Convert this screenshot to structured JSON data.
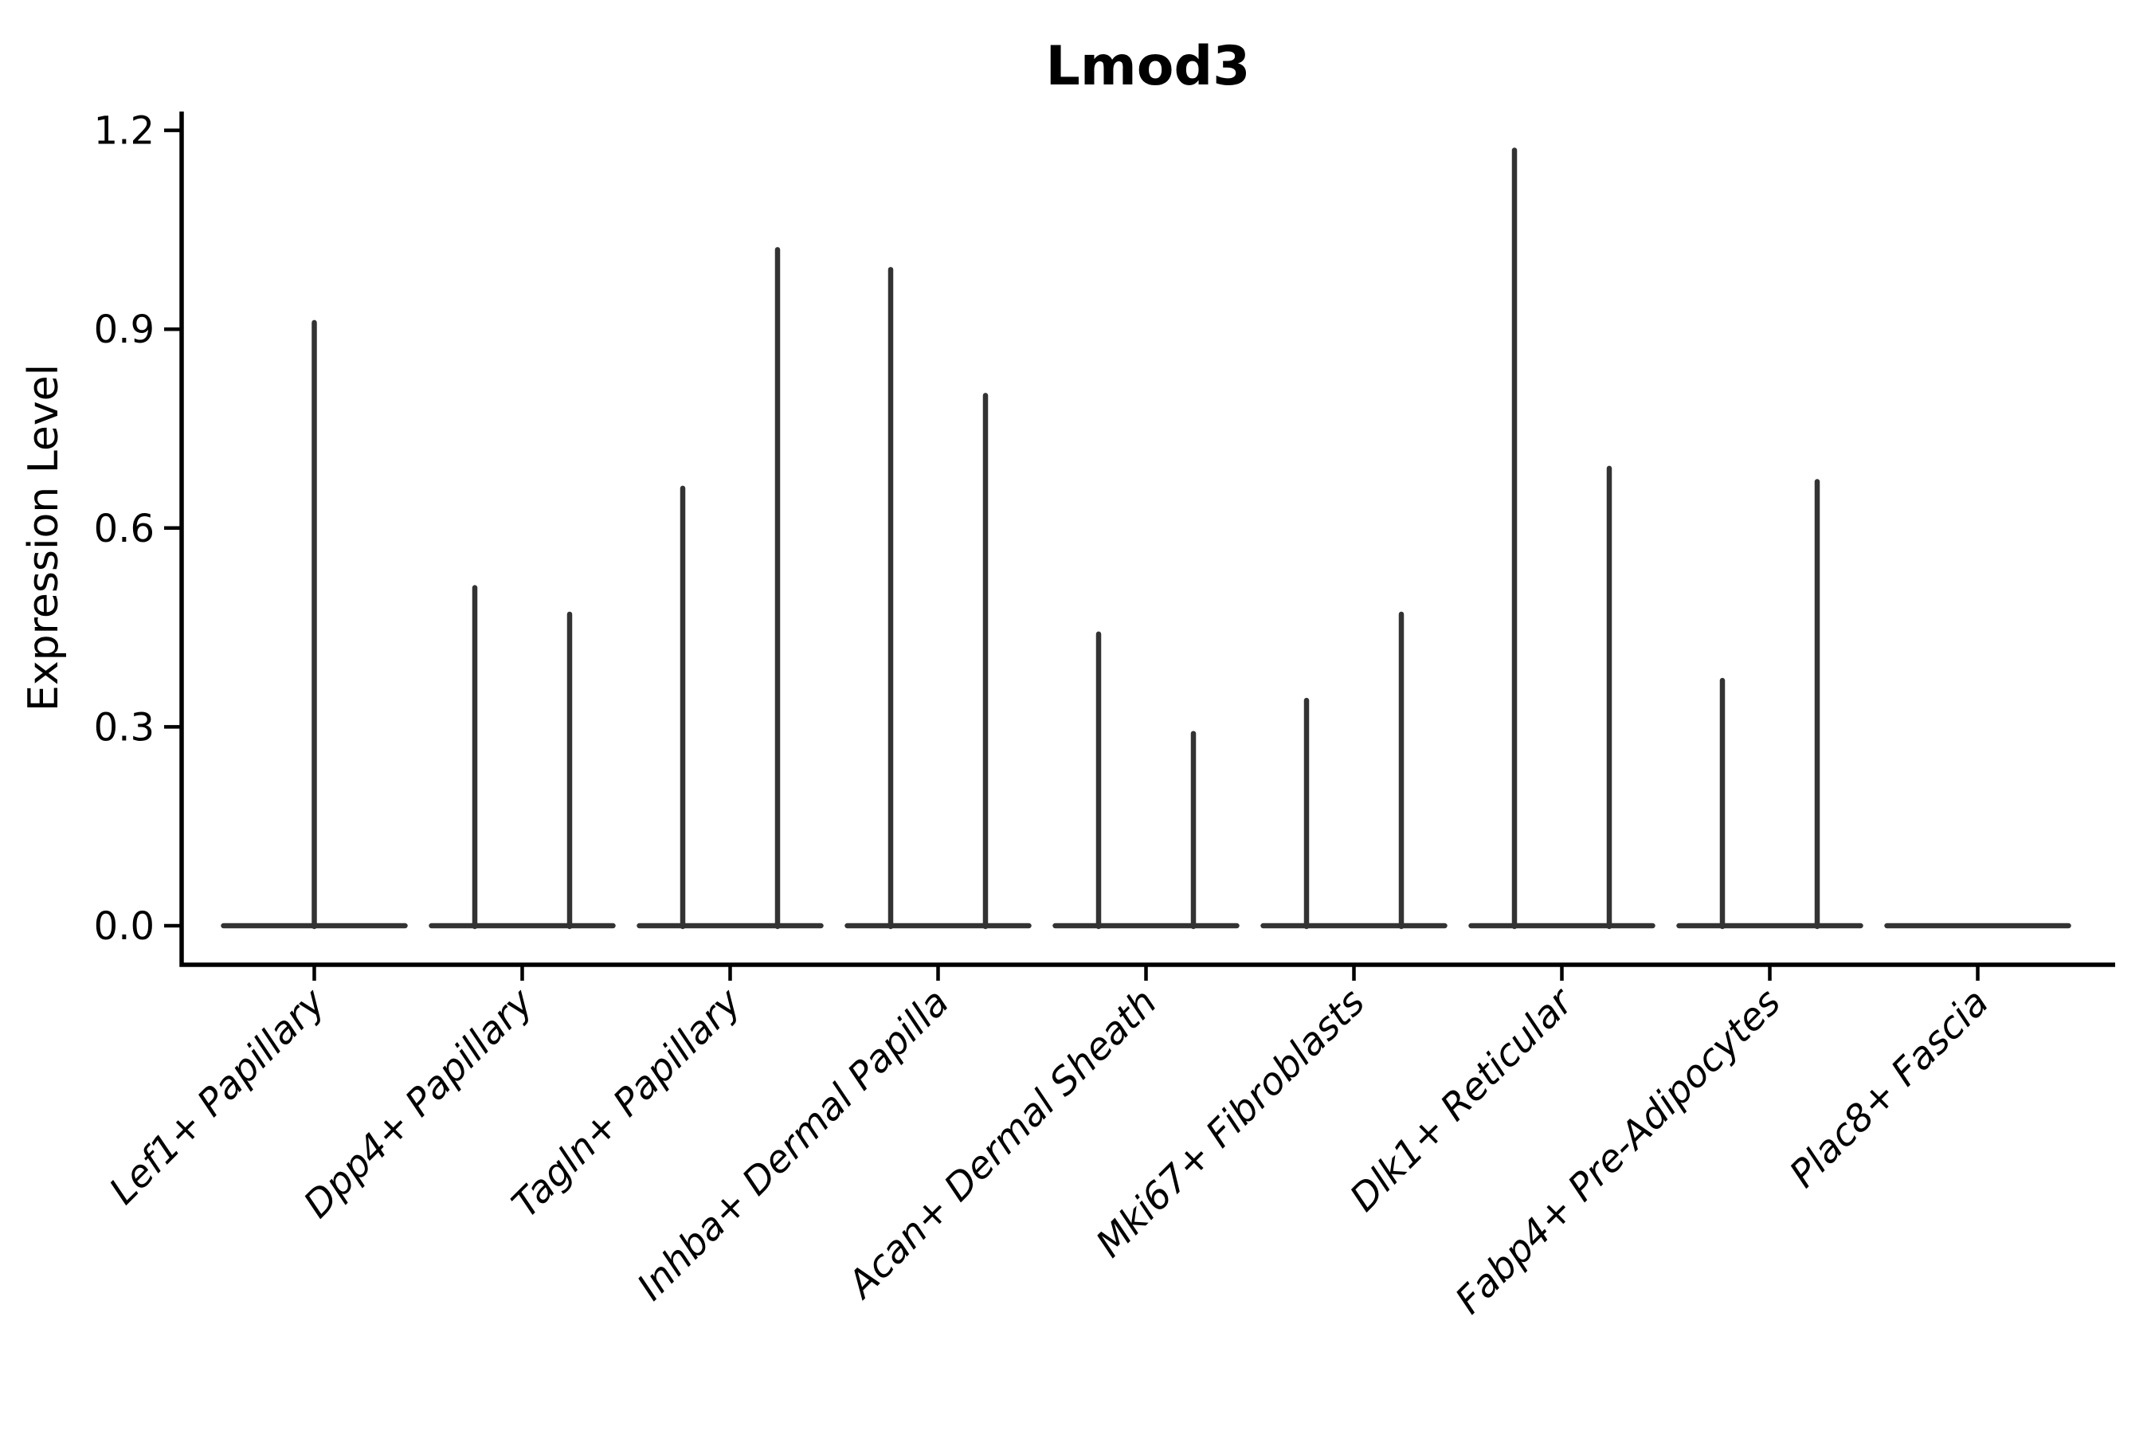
{
  "chart_data": {
    "type": "violin",
    "title": "Lmod3",
    "xlabel": "",
    "ylabel": "Expression Level",
    "yticks": [
      0.0,
      0.3,
      0.6,
      0.9,
      1.2
    ],
    "ytick_labels": [
      "0.0",
      "0.3",
      "0.6",
      "0.9",
      "1.2"
    ],
    "ylim": [
      -0.06,
      1.23
    ],
    "grid": false,
    "legend": "none",
    "xticklabel_rotation_deg": 45,
    "xticklabel_style": "italic",
    "description": "Needle-thin violins: flat base at expression 0 with a thin spike up to the max expression; categories with two values contain two half-width violins side by side, categories with one value contain a single full-width violin.",
    "violins": [
      {
        "category": "Lef1+ Papillary",
        "max_values": [
          0.91
        ]
      },
      {
        "category": "Dpp4+ Papillary",
        "max_values": [
          0.51,
          0.47
        ]
      },
      {
        "category": "Tagln+ Papillary",
        "max_values": [
          0.66,
          1.02
        ]
      },
      {
        "category": "Inhba+ Dermal Papilla",
        "max_values": [
          0.99,
          0.8
        ]
      },
      {
        "category": "Acan+ Dermal Sheath",
        "max_values": [
          0.44,
          0.29
        ]
      },
      {
        "category": "Mki67+ Fibroblasts",
        "max_values": [
          0.34,
          0.47
        ]
      },
      {
        "category": "Dlk1+ Reticular",
        "max_values": [
          1.17,
          0.69
        ]
      },
      {
        "category": "Fabp4+ Pre-Adipocytes",
        "max_values": [
          0.37,
          0.67
        ]
      },
      {
        "category": "Plac8+ Fascia",
        "max_values": [
          0
        ]
      }
    ],
    "colors": {
      "violin": "#333333",
      "axis": "#000000",
      "text": "#000000",
      "background": "#ffffff"
    }
  }
}
